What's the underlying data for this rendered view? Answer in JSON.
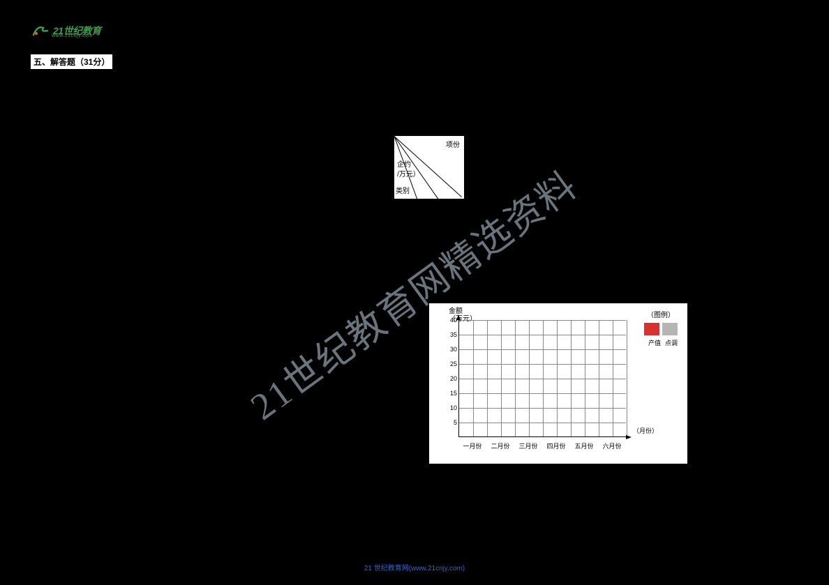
{
  "logo": {
    "text": "21世纪教育",
    "sub": "www.21cnjy.com",
    "icon_color": "#3a9e4a"
  },
  "section_title": "五、解答题（31分）",
  "diagonal_table": {
    "labels": {
      "top_right": "项份",
      "mid_left": "企约",
      "mid": "/万元）",
      "bottom_left": "类别"
    }
  },
  "chart": {
    "type": "bar",
    "ylabel_line1": "金额",
    "ylabel_line2": "（万元）",
    "xaxis_title": "（月份）",
    "legend_title": "（图例）",
    "ytick_values": [
      5,
      10,
      15,
      20,
      25,
      30,
      35,
      40
    ],
    "ylim": [
      0,
      40
    ],
    "ytick_step": 5,
    "x_categories": [
      "一月份",
      "二月份",
      "三月份",
      "四月份",
      "五月份",
      "六月份"
    ],
    "series": [
      {
        "name": "产值",
        "color": "#d93030"
      },
      {
        "name": "点调",
        "color": "#b5b5b5"
      }
    ],
    "background_color": "#ffffff",
    "grid_color": "#888888",
    "axis_color": "#000000",
    "label_fontsize": 9
  },
  "watermark": "21世纪教育网精选资料",
  "footer": "21 世纪教育网(www.21cnjy.com)"
}
